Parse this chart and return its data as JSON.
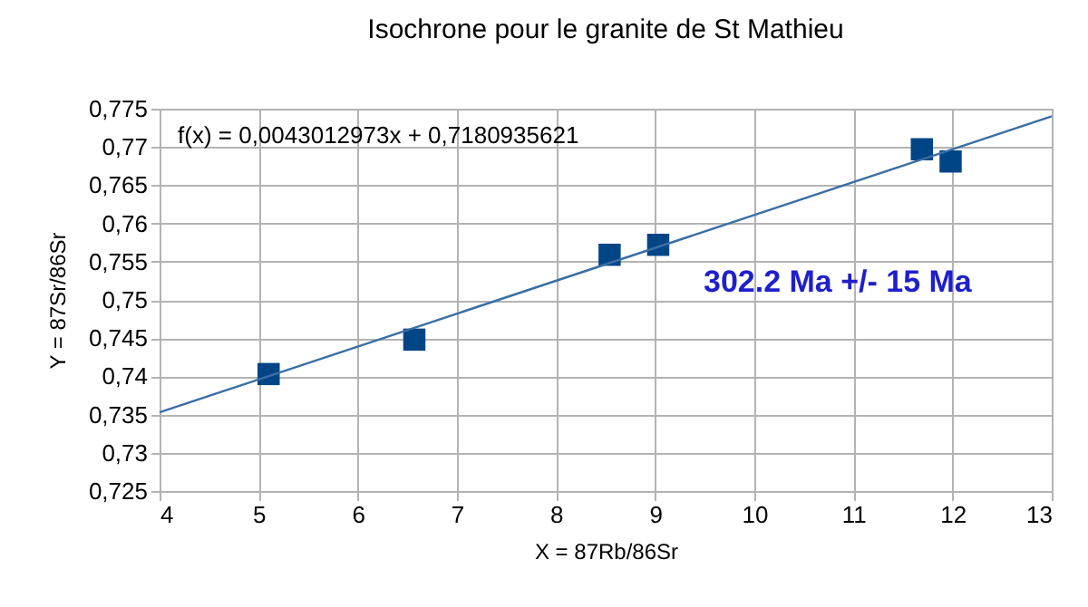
{
  "chart_data": {
    "type": "scatter",
    "title": "Isochrone pour le granite de St Mathieu",
    "xlabel": "X = 87Rb/86Sr",
    "ylabel": "Y = 87Sr/86Sr",
    "x": [
      5.1,
      6.57,
      8.54,
      9.03,
      11.69,
      11.98
    ],
    "series": [
      {
        "color": "#004586",
        "marker": "square",
        "values": [
          0.7403,
          0.7448,
          0.7559,
          0.7572,
          0.7697,
          0.7681
        ]
      },
      {
        "type": "line",
        "marker": "none",
        "color": "#3a6ea5",
        "x": [
          4,
          13
        ],
        "values": [
          0.7353,
          0.774
        ]
      }
    ],
    "xlim": [
      4,
      13
    ],
    "xticks": [
      4,
      5,
      6,
      7,
      8,
      9,
      10,
      11,
      12,
      13
    ],
    "ylim": [
      0.725,
      0.775
    ],
    "yticks": [
      {
        "value": 0.725,
        "label": "0,725"
      },
      {
        "value": 0.73,
        "label": "0,73"
      },
      {
        "value": 0.735,
        "label": "0,735"
      },
      {
        "value": 0.74,
        "label": "0,74"
      },
      {
        "value": 0.745,
        "label": "0,745"
      },
      {
        "value": 0.75,
        "label": "0,75"
      },
      {
        "value": 0.755,
        "label": "0,755"
      },
      {
        "value": 0.76,
        "label": "0,76"
      },
      {
        "value": 0.765,
        "label": "0,765"
      },
      {
        "value": 0.77,
        "label": "0,77"
      },
      {
        "value": 0.775,
        "label": "0,775"
      }
    ],
    "grid": true,
    "line_style": "solid",
    "annotations": [
      "f(x) = 0,0043012973x + 0,7180935621",
      "302.2 Ma +/- 15 Ma"
    ]
  }
}
